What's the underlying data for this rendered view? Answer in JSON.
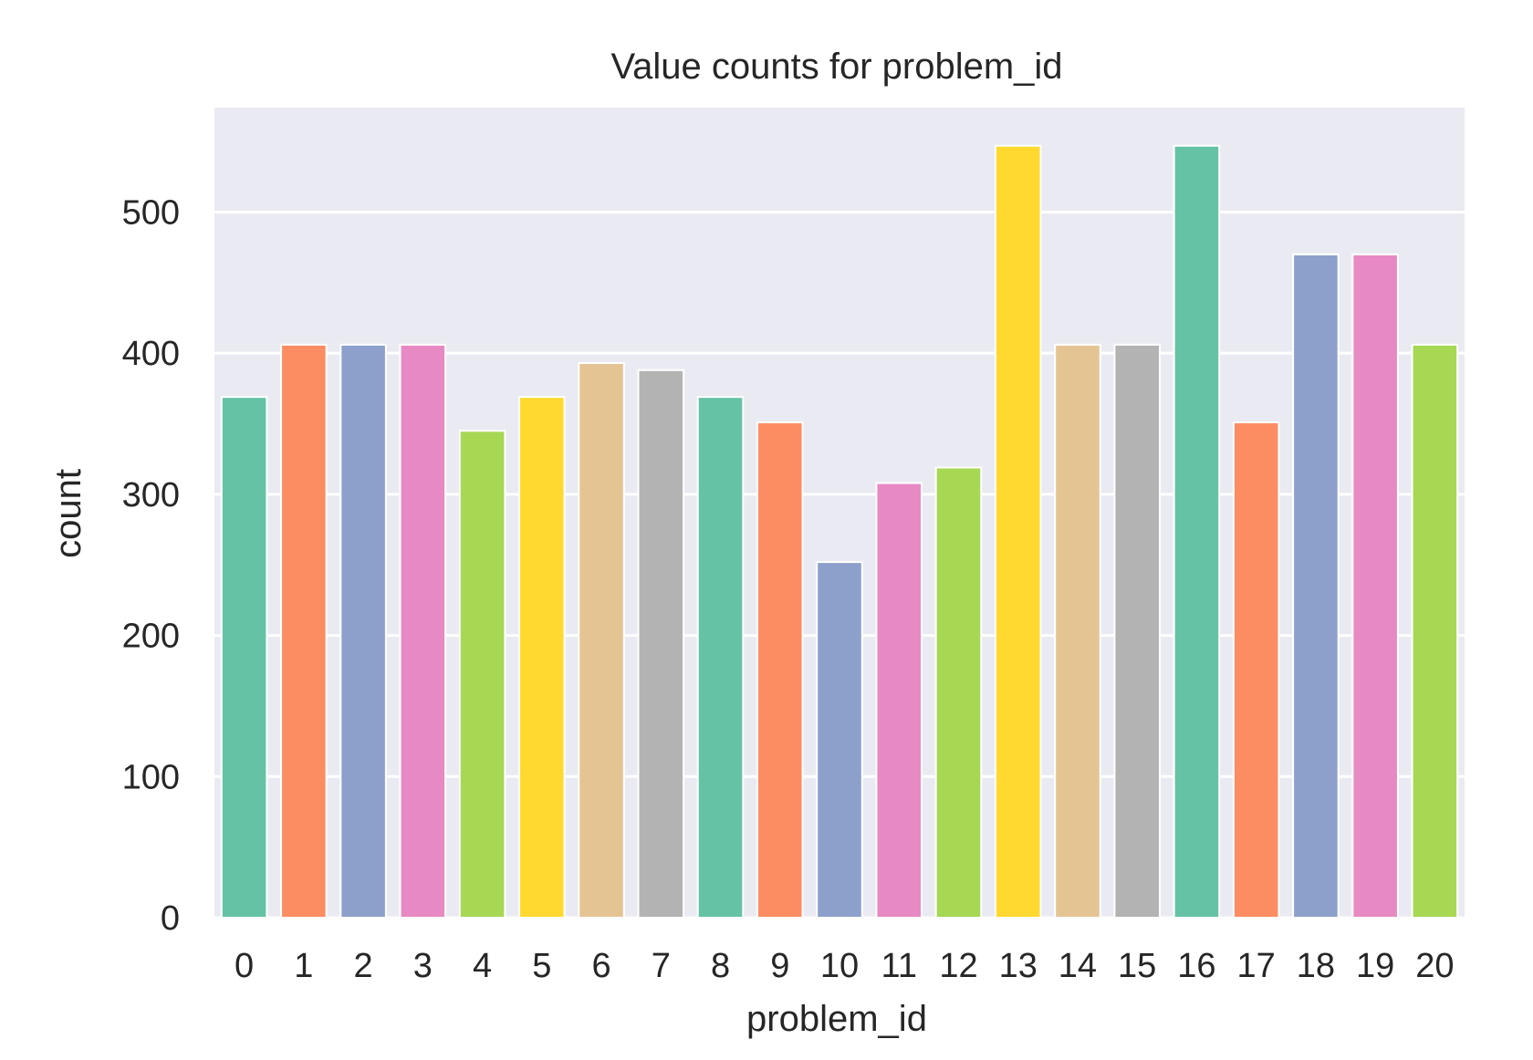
{
  "chart_data": {
    "type": "bar",
    "title": "Value counts for problem_id",
    "xlabel": "problem_id",
    "ylabel": "count",
    "categories": [
      "0",
      "1",
      "2",
      "3",
      "4",
      "5",
      "6",
      "7",
      "8",
      "9",
      "10",
      "11",
      "12",
      "13",
      "14",
      "15",
      "16",
      "17",
      "18",
      "19",
      "20"
    ],
    "values": [
      369,
      406,
      406,
      406,
      345,
      369,
      393,
      388,
      369,
      351,
      252,
      308,
      319,
      547,
      406,
      406,
      547,
      351,
      470,
      470,
      406
    ],
    "yticks": [
      0,
      100,
      200,
      300,
      400,
      500
    ],
    "ylim": [
      0,
      574
    ],
    "grid": true,
    "legend": "none",
    "colors": [
      "#66c2a5",
      "#fc8d62",
      "#8da0cb",
      "#e78ac3",
      "#a6d854",
      "#ffd92f",
      "#e5c494",
      "#b3b3b3"
    ],
    "background": "#eaeaf2"
  }
}
